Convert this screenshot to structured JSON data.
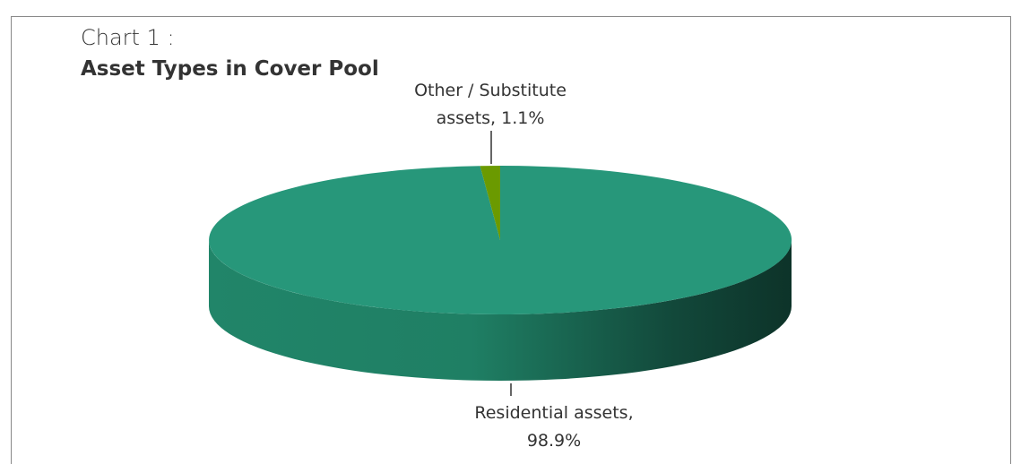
{
  "chart_data": {
    "type": "pie",
    "subtitle": "Chart 1 :",
    "title": "Asset Types in Cover Pool",
    "categories": [
      "Residential assets,",
      "Other / Substitute assets,"
    ],
    "values": [
      98.9,
      1.1
    ],
    "value_labels": [
      "98.9%",
      "1.1%"
    ],
    "colors": [
      "#27977a",
      "#6b9a00"
    ]
  }
}
